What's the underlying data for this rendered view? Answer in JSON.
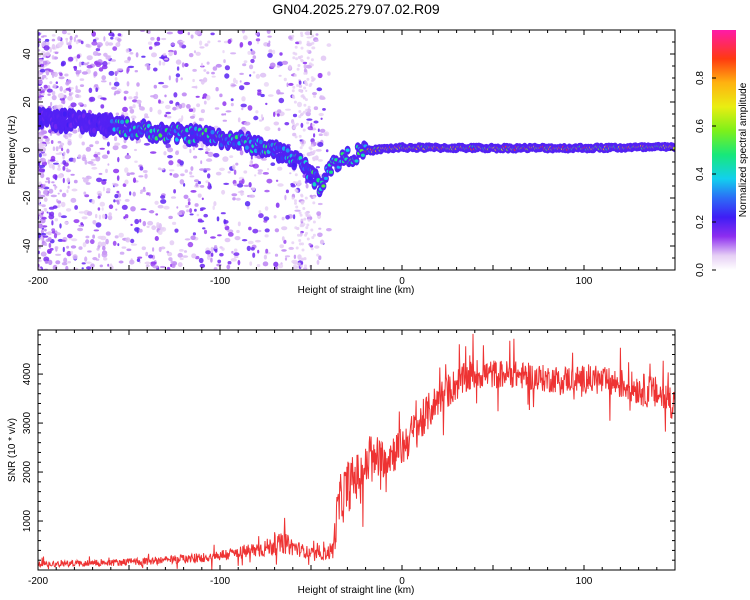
{
  "title": "GN04.2025.279.07.02.R09",
  "chart_data": [
    {
      "type": "heatmap",
      "name": "spectrogram",
      "xlabel": "Height of straight line (km)",
      "ylabel": "Frequency (Hz)",
      "xlim": [
        -200,
        150
      ],
      "ylim": [
        -50,
        50
      ],
      "xticks": [
        -200,
        -100,
        0,
        100
      ],
      "yticks": [
        -40,
        -20,
        0,
        20,
        40
      ],
      "colorbar": {
        "label": "Normalized spectral amplitude",
        "range": [
          0.0,
          1.0
        ],
        "ticks": [
          "0.0",
          "0.2",
          "0.4",
          "0.6",
          "0.8"
        ]
      },
      "ridge": {
        "x": [
          -200,
          -170,
          -150,
          -130,
          -110,
          -90,
          -75,
          -60,
          -52,
          -45,
          -40,
          -35,
          -30,
          -20,
          -10,
          0,
          50,
          100,
          150
        ],
        "freq": [
          13,
          11,
          9,
          7,
          6,
          4,
          1,
          -3,
          -8,
          -15,
          -7,
          -5,
          -3,
          -0.5,
          0.5,
          1,
          0.8,
          0.8,
          1.2
        ]
      }
    },
    {
      "type": "line",
      "name": "snr",
      "xlabel": "Height of straight line (km)",
      "ylabel": "SNR (10 * v/v)",
      "xlim": [
        -200,
        150
      ],
      "ylim": [
        0,
        4900
      ],
      "xticks": [
        -200,
        -100,
        0,
        100
      ],
      "yticks": [
        1000,
        2000,
        3000,
        4000
      ],
      "color": "#ee3333",
      "envelope": {
        "x": [
          -200,
          -160,
          -130,
          -110,
          -90,
          -75,
          -65,
          -55,
          -45,
          -38,
          -35,
          -30,
          -25,
          -20,
          -10,
          0,
          10,
          20,
          30,
          40,
          60,
          80,
          100,
          120,
          140,
          150
        ],
        "mean": [
          120,
          150,
          200,
          250,
          350,
          450,
          550,
          400,
          300,
          400,
          1300,
          1700,
          1900,
          2100,
          2300,
          2500,
          3000,
          3500,
          3800,
          4000,
          4000,
          3900,
          3900,
          3800,
          3600,
          3400
        ],
        "spread": [
          90,
          100,
          120,
          140,
          200,
          260,
          320,
          200,
          120,
          300,
          800,
          800,
          700,
          600,
          600,
          600,
          600,
          500,
          500,
          450,
          400,
          400,
          400,
          450,
          500,
          500
        ]
      }
    }
  ]
}
